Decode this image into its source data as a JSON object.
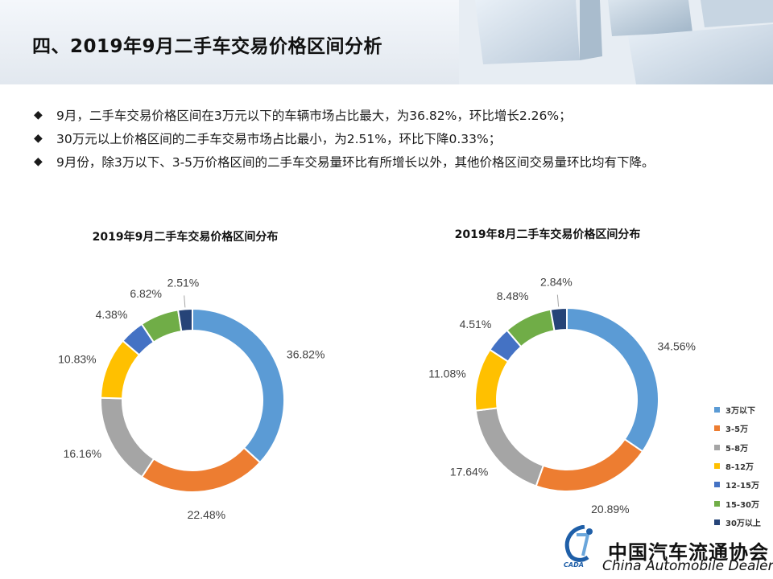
{
  "header": {
    "title": "四、2019年9月二手车交易价格区间分析"
  },
  "bullets": [
    "9月，二手车交易价格区间在3万元以下的车辆市场占比最大，为36.82%，环比增长2.26%；",
    "30万元以上价格区间的二手车交易市场占比最小，为2.51%，环比下降0.33%；",
    "9月份，除3万以下、3-5万价格区间的二手车交易量环比有所增长以外，其他价格区间交易量环比均有下降。"
  ],
  "bullet_glyph": "◆",
  "colors": {
    "3万以下": "#5b9bd5",
    "3-5万": "#ed7d31",
    "5-8万": "#a5a5a5",
    "8-12万": "#ffc000",
    "12-15万": "#4472c4",
    "15-30万": "#70ad47",
    "30万以上": "#264478"
  },
  "chart_data": [
    {
      "type": "pie",
      "variant": "donut",
      "title": "2019年9月二手车交易价格区间分布",
      "categories": [
        "3万以下",
        "3-5万",
        "5-8万",
        "8-12万",
        "12-15万",
        "15-30万",
        "30万以上"
      ],
      "values": [
        36.82,
        22.48,
        16.16,
        10.83,
        4.38,
        6.82,
        2.51
      ],
      "labels": [
        "36.82%",
        "22.48%",
        "16.16%",
        "10.83%",
        "4.38%",
        "6.82%",
        "2.51%"
      ],
      "legend": "none"
    },
    {
      "type": "pie",
      "variant": "donut",
      "title": "2019年8月二手车交易价格区间分布",
      "categories": [
        "3万以下",
        "3-5万",
        "5-8万",
        "8-12万",
        "12-15万",
        "15-30万",
        "30万以上"
      ],
      "values": [
        34.56,
        20.89,
        17.64,
        11.08,
        4.51,
        8.48,
        2.84
      ],
      "labels": [
        "34.56%",
        "20.89%",
        "17.64%",
        "11.08%",
        "4.51%",
        "8.48%",
        "2.84%"
      ],
      "legend": "right"
    }
  ],
  "logo": {
    "name_cn": "中国汽车流通协会",
    "name_en": "China Automobile Dealers",
    "mark_text": "CADA"
  }
}
